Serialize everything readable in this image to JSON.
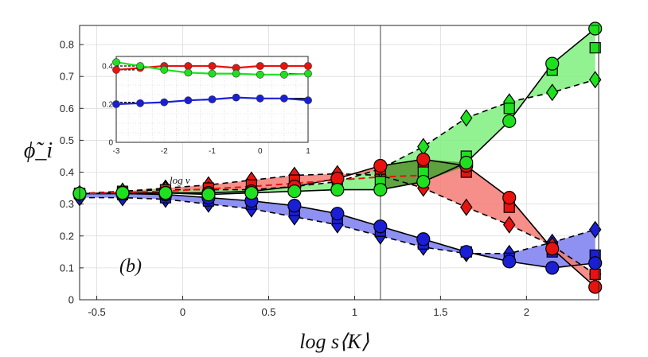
{
  "chart_data": {
    "type": "line",
    "panel_label": "(b)",
    "xlabel": "log s⟨K⟩",
    "ylabel": "ϕ̃_i",
    "xlim": [
      -0.6,
      2.42
    ],
    "ylim": [
      0,
      0.86
    ],
    "xticks": [
      -0.5,
      0,
      0.5,
      1,
      1.5,
      2
    ],
    "xtick_labels": [
      "-0.5",
      "0",
      "0.5",
      "1",
      "1.5",
      "2"
    ],
    "yticks": [
      0,
      0.1,
      0.2,
      0.3,
      0.4,
      0.5,
      0.6,
      0.7,
      0.8
    ],
    "ytick_labels": [
      "0",
      "0.1",
      "0.2",
      "0.3",
      "0.4",
      "0.5",
      "0.6",
      "0.7",
      "0.8"
    ],
    "grid": true,
    "vline_x": 1.15,
    "annotation": "log ν",
    "colors": {
      "red": "#e8130e",
      "green": "#1fe01f",
      "blue": "#1a1fd6",
      "red_fill": "#f47a74",
      "green_fill": "#7ff07f",
      "blue_fill": "#7b7ef0",
      "overlap_fill": "#4f8a2a"
    },
    "series": [
      {
        "name": "blue circles",
        "color": "blue",
        "marker": "circle",
        "line": "solid",
        "x": [
          -0.6,
          -0.35,
          -0.1,
          0.15,
          0.4,
          0.65,
          0.9,
          1.15,
          1.4,
          1.65,
          1.9,
          2.15,
          2.4
        ],
        "y": [
          0.333,
          0.333,
          0.33,
          0.32,
          0.31,
          0.295,
          0.27,
          0.23,
          0.19,
          0.15,
          0.12,
          0.1,
          0.115
        ]
      },
      {
        "name": "blue squares",
        "color": "blue",
        "marker": "square",
        "line": "none",
        "x": [
          -0.6,
          -0.35,
          -0.1,
          0.15,
          0.4,
          0.65,
          0.9,
          1.15,
          1.4,
          1.65,
          1.9,
          2.15,
          2.4
        ],
        "y": [
          0.333,
          0.33,
          0.32,
          0.31,
          0.3,
          0.28,
          0.255,
          0.215,
          0.175,
          0.15,
          0.13,
          0.15,
          0.14
        ]
      },
      {
        "name": "blue diamonds",
        "color": "blue",
        "marker": "diamond",
        "line": "dashed",
        "x": [
          -0.6,
          -0.35,
          -0.1,
          0.15,
          0.4,
          0.65,
          0.9,
          1.15,
          1.4,
          1.65,
          1.9,
          2.15,
          2.4
        ],
        "y": [
          0.32,
          0.32,
          0.315,
          0.3,
          0.285,
          0.26,
          0.235,
          0.2,
          0.165,
          0.145,
          0.145,
          0.18,
          0.22
        ]
      },
      {
        "name": "red circles",
        "color": "red",
        "marker": "circle",
        "line": "solid",
        "x": [
          -0.6,
          -0.35,
          -0.1,
          0.15,
          0.4,
          0.65,
          0.9,
          1.15,
          1.4,
          1.65,
          1.9,
          2.15,
          2.4
        ],
        "y": [
          0.333,
          0.333,
          0.335,
          0.335,
          0.34,
          0.355,
          0.38,
          0.42,
          0.44,
          0.42,
          0.32,
          0.16,
          0.04
        ]
      },
      {
        "name": "red squares",
        "color": "red",
        "marker": "square",
        "line": "none",
        "x": [
          -0.6,
          -0.35,
          -0.1,
          0.15,
          0.4,
          0.65,
          0.9,
          1.15,
          1.4,
          1.65,
          1.9,
          2.15,
          2.4
        ],
        "y": [
          0.333,
          0.34,
          0.345,
          0.35,
          0.36,
          0.375,
          0.38,
          0.41,
          0.43,
          0.4,
          0.29,
          0.16,
          0.08
        ]
      },
      {
        "name": "red diamonds",
        "color": "red",
        "marker": "diamond",
        "line": "dashed",
        "x": [
          -0.6,
          -0.35,
          -0.1,
          0.15,
          0.4,
          0.65,
          0.9,
          1.15,
          1.4,
          1.65,
          1.9,
          2.15,
          2.4
        ],
        "y": [
          0.333,
          0.34,
          0.35,
          0.36,
          0.375,
          0.39,
          0.395,
          0.39,
          0.35,
          0.29,
          0.235,
          0.17,
          0.08
        ]
      },
      {
        "name": "green circles",
        "color": "green",
        "marker": "circle",
        "line": "solid",
        "x": [
          -0.6,
          -0.35,
          -0.1,
          0.15,
          0.4,
          0.65,
          0.9,
          1.15,
          1.4,
          1.65,
          1.9,
          2.15,
          2.4
        ],
        "y": [
          0.333,
          0.335,
          0.335,
          0.33,
          0.335,
          0.34,
          0.345,
          0.345,
          0.37,
          0.43,
          0.56,
          0.74,
          0.85
        ]
      },
      {
        "name": "green squares",
        "color": "green",
        "marker": "square",
        "line": "none",
        "x": [
          -0.6,
          -0.35,
          -0.1,
          0.15,
          0.4,
          0.65,
          0.9,
          1.15,
          1.4,
          1.65,
          1.9,
          2.15,
          2.4
        ],
        "y": [
          0.333,
          0.335,
          0.335,
          0.335,
          0.34,
          0.345,
          0.36,
          0.37,
          0.4,
          0.45,
          0.6,
          0.72,
          0.79
        ]
      },
      {
        "name": "green diamonds",
        "color": "green",
        "marker": "diamond",
        "line": "dashed",
        "x": [
          -0.6,
          -0.35,
          -0.1,
          0.15,
          0.4,
          0.65,
          0.9,
          1.15,
          1.4,
          1.65,
          1.9,
          2.15,
          2.4
        ],
        "y": [
          0.333,
          0.34,
          0.345,
          0.345,
          0.345,
          0.355,
          0.37,
          0.41,
          0.48,
          0.57,
          0.62,
          0.65,
          0.69
        ]
      }
    ],
    "bands": [
      {
        "color": "blue",
        "upper": "blue circles",
        "lower": "blue diamonds"
      },
      {
        "color": "red",
        "upper": "red circles",
        "lower": "red diamonds"
      },
      {
        "color": "green",
        "upper": "green circles",
        "lower": "green diamonds"
      }
    ],
    "mean_curve": {
      "name": "red dashed mean",
      "color": "red",
      "x": [
        -0.6,
        -0.1,
        0.4,
        0.9,
        1.15,
        1.4
      ],
      "y": [
        0.333,
        0.34,
        0.355,
        0.375,
        0.385,
        0.39
      ]
    },
    "inset": {
      "xlim": [
        -3,
        1
      ],
      "ylim": [
        0,
        0.45
      ],
      "xticks": [
        -3,
        -2,
        -1,
        0,
        1
      ],
      "xtick_labels": [
        "-3",
        "-2",
        "-1",
        "0",
        "1"
      ],
      "yticks": [
        0,
        0.2,
        0.4
      ],
      "ytick_labels": [
        "0",
        "0.2",
        "0.4"
      ],
      "grid": "dotted",
      "series": [
        {
          "name": "inset red",
          "color": "red",
          "x": [
            -3,
            -2.5,
            -2,
            -1.5,
            -1,
            -0.5,
            0,
            0.5,
            1
          ],
          "y": [
            0.38,
            0.39,
            0.4,
            0.4,
            0.4,
            0.39,
            0.4,
            0.4,
            0.4
          ]
        },
        {
          "name": "inset green",
          "color": "green",
          "x": [
            -3,
            -2.5,
            -2,
            -1.5,
            -1,
            -0.5,
            0,
            0.5,
            1
          ],
          "y": [
            0.42,
            0.4,
            0.38,
            0.365,
            0.36,
            0.36,
            0.355,
            0.355,
            0.36
          ]
        },
        {
          "name": "inset blue",
          "color": "blue",
          "x": [
            -3,
            -2.5,
            -2,
            -1.5,
            -1,
            -0.5,
            0,
            0.5,
            1
          ],
          "y": [
            0.2,
            0.205,
            0.21,
            0.22,
            0.225,
            0.235,
            0.23,
            0.23,
            0.22
          ]
        }
      ],
      "reference_levels": [
        {
          "y": 0.4,
          "x_range": [
            -3,
            -2.6
          ],
          "side": "left"
        },
        {
          "y": 0.38,
          "x_range": [
            -3,
            -2.6
          ],
          "side": "left"
        },
        {
          "y": 0.21,
          "x_range": [
            -3,
            -2.6
          ],
          "side": "left"
        },
        {
          "y": 0.4,
          "x_range": [
            0.6,
            1
          ],
          "side": "right"
        },
        {
          "y": 0.36,
          "x_range": [
            0.6,
            1
          ],
          "side": "right"
        },
        {
          "y": 0.23,
          "x_range": [
            0.6,
            1
          ],
          "side": "right"
        }
      ]
    }
  }
}
